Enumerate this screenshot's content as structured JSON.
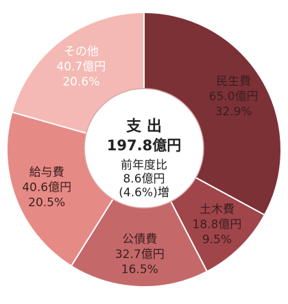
{
  "chart_data": {
    "type": "pie",
    "center": {
      "title": "支 出",
      "total": "197.8億円",
      "note_lines": [
        "前年度比",
        "8.6億円",
        "(4.6%)増"
      ]
    },
    "slices": [
      {
        "name": "民生費",
        "amount": 65.0,
        "amount_label": "65.0億円",
        "percent": 32.9,
        "percent_label": "32.9%",
        "color": "#7c3137",
        "text": "light"
      },
      {
        "name": "土木費",
        "amount": 18.8,
        "amount_label": "18.8億円",
        "percent": 9.5,
        "percent_label": "9.5%",
        "color": "#a0454a",
        "text": "light"
      },
      {
        "name": "公債費",
        "amount": 32.7,
        "amount_label": "32.7億円",
        "percent": 16.5,
        "percent_label": "16.5%",
        "color": "#c5686a",
        "text": "light"
      },
      {
        "name": "給与費",
        "amount": 40.6,
        "amount_label": "40.6億円",
        "percent": 20.5,
        "percent_label": "20.5%",
        "color": "#e68a86",
        "text": "light"
      },
      {
        "name": "その他",
        "amount": 40.7,
        "amount_label": "40.7億円",
        "percent": 20.6,
        "percent_label": "20.6%",
        "color": "#f4b9b4",
        "text": "dark"
      }
    ]
  }
}
